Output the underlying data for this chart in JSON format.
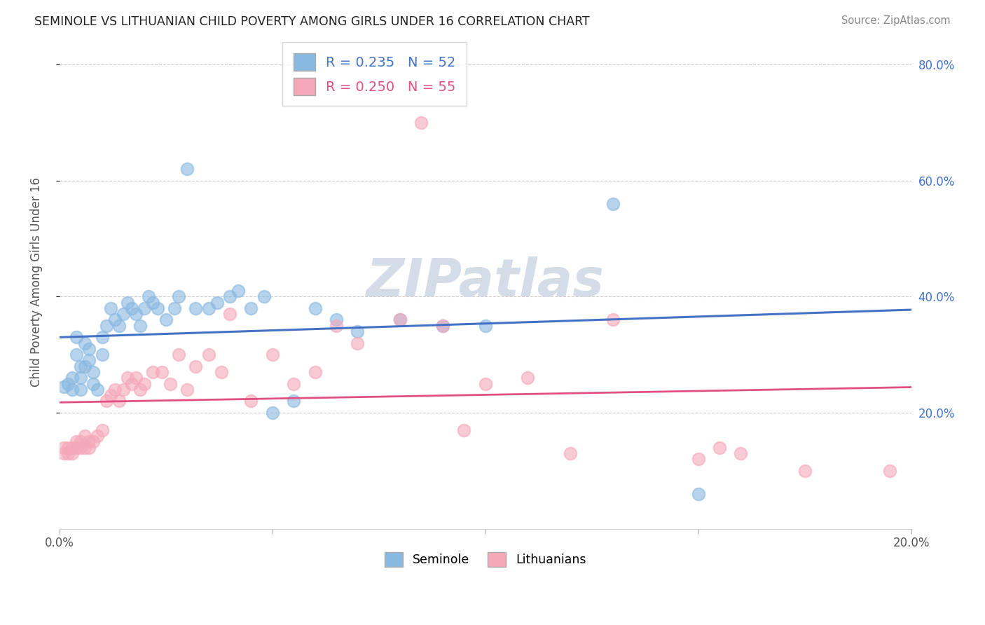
{
  "title": "SEMINOLE VS LITHUANIAN CHILD POVERTY AMONG GIRLS UNDER 16 CORRELATION CHART",
  "source": "Source: ZipAtlas.com",
  "ylabel": "Child Poverty Among Girls Under 16",
  "xlim": [
    0.0,
    0.2
  ],
  "ylim": [
    0.0,
    0.85
  ],
  "xticks": [
    0.0,
    0.05,
    0.1,
    0.15,
    0.2
  ],
  "xtick_labels": [
    "0.0%",
    "",
    "",
    "",
    "20.0%"
  ],
  "yticks": [
    0.2,
    0.4,
    0.6,
    0.8
  ],
  "ytick_labels": [
    "20.0%",
    "40.0%",
    "60.0%",
    "80.0%"
  ],
  "seminole_R": 0.235,
  "seminole_N": 52,
  "lithuanian_R": 0.25,
  "lithuanian_N": 55,
  "seminole_color": "#89b8e0",
  "lithuanian_color": "#f4a8b8",
  "line_seminole_color": "#4472c4",
  "line_lithuanian_color": "#e05080",
  "watermark_color": "#d4dce8",
  "seminole_x": [
    0.001,
    0.002,
    0.003,
    0.003,
    0.004,
    0.004,
    0.005,
    0.005,
    0.005,
    0.006,
    0.006,
    0.007,
    0.007,
    0.008,
    0.008,
    0.009,
    0.01,
    0.01,
    0.011,
    0.012,
    0.013,
    0.014,
    0.015,
    0.016,
    0.017,
    0.018,
    0.019,
    0.02,
    0.021,
    0.022,
    0.023,
    0.025,
    0.027,
    0.028,
    0.03,
    0.032,
    0.035,
    0.037,
    0.04,
    0.042,
    0.045,
    0.048,
    0.05,
    0.055,
    0.06,
    0.065,
    0.07,
    0.08,
    0.09,
    0.1,
    0.13,
    0.15
  ],
  "seminole_y": [
    0.245,
    0.25,
    0.24,
    0.26,
    0.33,
    0.3,
    0.28,
    0.26,
    0.24,
    0.32,
    0.28,
    0.31,
    0.29,
    0.27,
    0.25,
    0.24,
    0.33,
    0.3,
    0.35,
    0.38,
    0.36,
    0.35,
    0.37,
    0.39,
    0.38,
    0.37,
    0.35,
    0.38,
    0.4,
    0.39,
    0.38,
    0.36,
    0.38,
    0.4,
    0.62,
    0.38,
    0.38,
    0.39,
    0.4,
    0.41,
    0.38,
    0.4,
    0.2,
    0.22,
    0.38,
    0.36,
    0.34,
    0.36,
    0.35,
    0.35,
    0.56,
    0.06
  ],
  "lithuanian_x": [
    0.001,
    0.001,
    0.002,
    0.002,
    0.003,
    0.003,
    0.004,
    0.004,
    0.005,
    0.005,
    0.006,
    0.006,
    0.007,
    0.007,
    0.008,
    0.009,
    0.01,
    0.011,
    0.012,
    0.013,
    0.014,
    0.015,
    0.016,
    0.017,
    0.018,
    0.019,
    0.02,
    0.022,
    0.024,
    0.026,
    0.028,
    0.03,
    0.032,
    0.035,
    0.038,
    0.04,
    0.045,
    0.05,
    0.055,
    0.06,
    0.065,
    0.07,
    0.08,
    0.085,
    0.09,
    0.095,
    0.1,
    0.11,
    0.12,
    0.13,
    0.15,
    0.155,
    0.16,
    0.175,
    0.195
  ],
  "lithuanian_y": [
    0.14,
    0.13,
    0.14,
    0.13,
    0.13,
    0.14,
    0.15,
    0.14,
    0.14,
    0.15,
    0.16,
    0.14,
    0.15,
    0.14,
    0.15,
    0.16,
    0.17,
    0.22,
    0.23,
    0.24,
    0.22,
    0.24,
    0.26,
    0.25,
    0.26,
    0.24,
    0.25,
    0.27,
    0.27,
    0.25,
    0.3,
    0.24,
    0.28,
    0.3,
    0.27,
    0.37,
    0.22,
    0.3,
    0.25,
    0.27,
    0.35,
    0.32,
    0.36,
    0.7,
    0.35,
    0.17,
    0.25,
    0.26,
    0.13,
    0.36,
    0.12,
    0.14,
    0.13,
    0.1,
    0.1
  ]
}
